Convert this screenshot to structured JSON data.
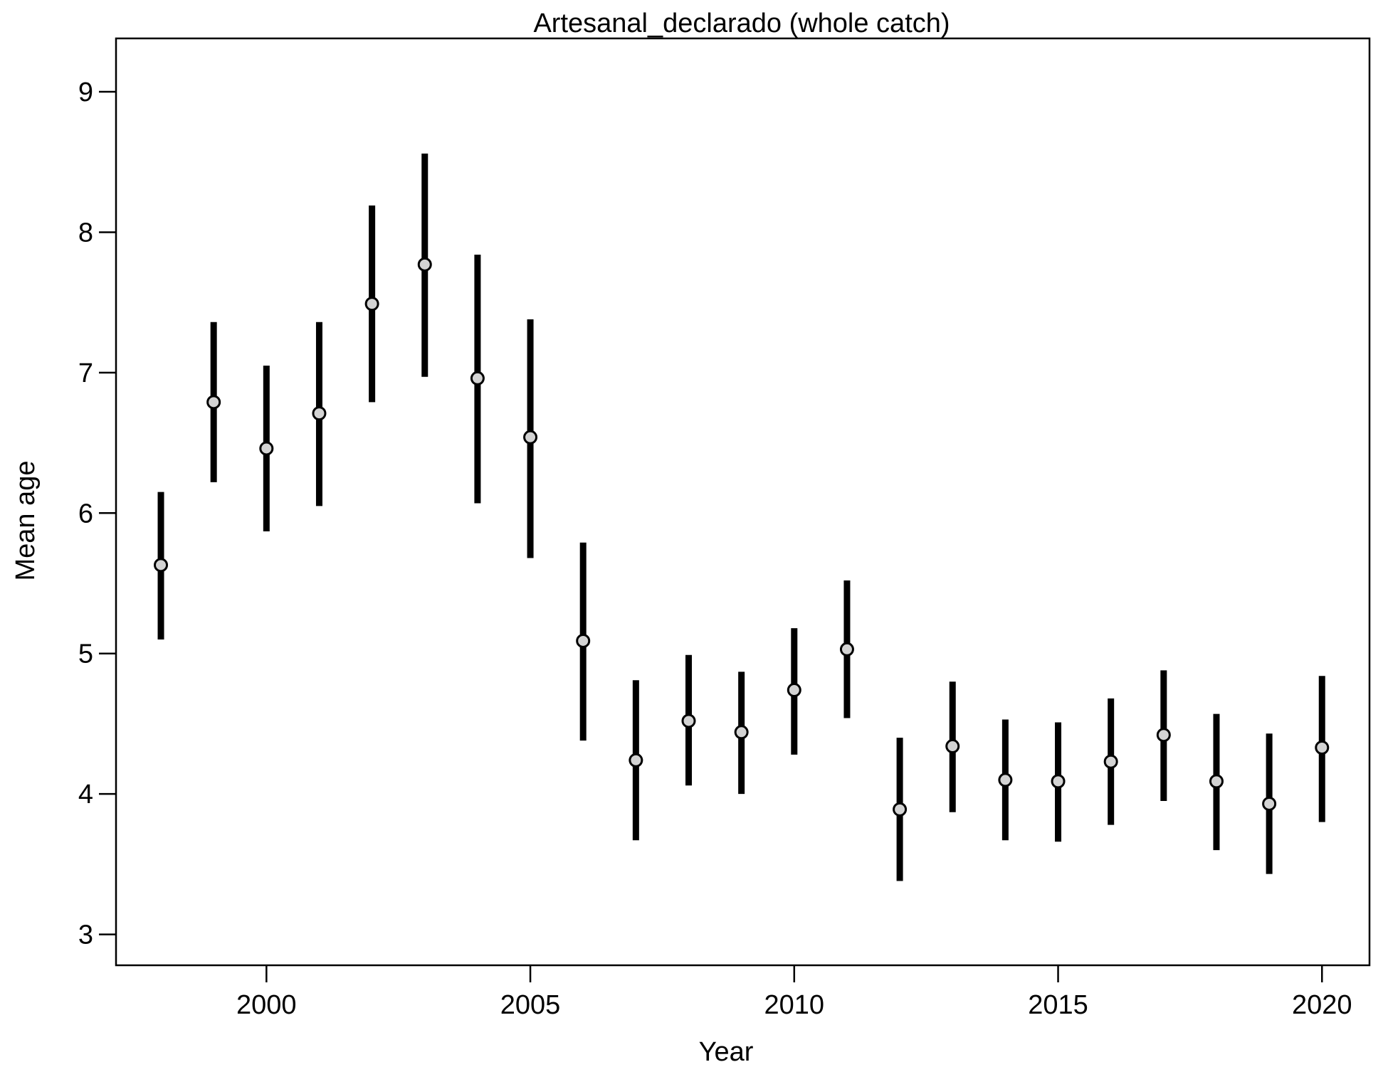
{
  "chart_data": {
    "type": "scatter",
    "title": "Artesanal_declarado (whole catch)",
    "xlabel": "Year",
    "ylabel": "Mean age",
    "xlim": [
      1997.15,
      2020.9
    ],
    "ylim": [
      2.78,
      9.38
    ],
    "xticks": [
      2000,
      2005,
      2010,
      2015,
      2020
    ],
    "yticks": [
      3,
      4,
      5,
      6,
      7,
      8,
      9
    ],
    "grid": false,
    "legend": "none",
    "series": [
      {
        "x": [
          1998,
          1999,
          2000,
          2001,
          2002,
          2003,
          2004,
          2005,
          2006,
          2007,
          2008,
          2009,
          2010,
          2011,
          2012,
          2013,
          2014,
          2015,
          2016,
          2017,
          2018,
          2019,
          2020
        ],
        "y": [
          5.63,
          6.79,
          6.46,
          6.71,
          7.49,
          7.77,
          6.96,
          6.54,
          5.09,
          4.24,
          4.52,
          4.44,
          4.74,
          5.03,
          3.89,
          4.34,
          4.1,
          4.09,
          4.23,
          4.42,
          4.09,
          3.93,
          4.33
        ],
        "y_low": [
          5.1,
          6.22,
          5.87,
          6.05,
          6.79,
          6.97,
          6.07,
          5.68,
          4.38,
          3.67,
          4.06,
          4.0,
          4.28,
          4.54,
          3.38,
          3.87,
          3.67,
          3.66,
          3.78,
          3.95,
          3.6,
          3.43,
          3.8
        ],
        "y_high": [
          6.15,
          7.36,
          7.05,
          7.36,
          8.19,
          8.56,
          7.84,
          7.38,
          5.79,
          4.81,
          4.99,
          4.87,
          5.18,
          5.52,
          4.4,
          4.8,
          4.53,
          4.51,
          4.68,
          4.88,
          4.57,
          4.43,
          4.84
        ]
      }
    ]
  },
  "colors": {
    "background": "#ffffff",
    "axis": "#000000",
    "errorbar": "#000000",
    "point_fill": "#d3d3d3",
    "point_stroke": "#000000"
  }
}
